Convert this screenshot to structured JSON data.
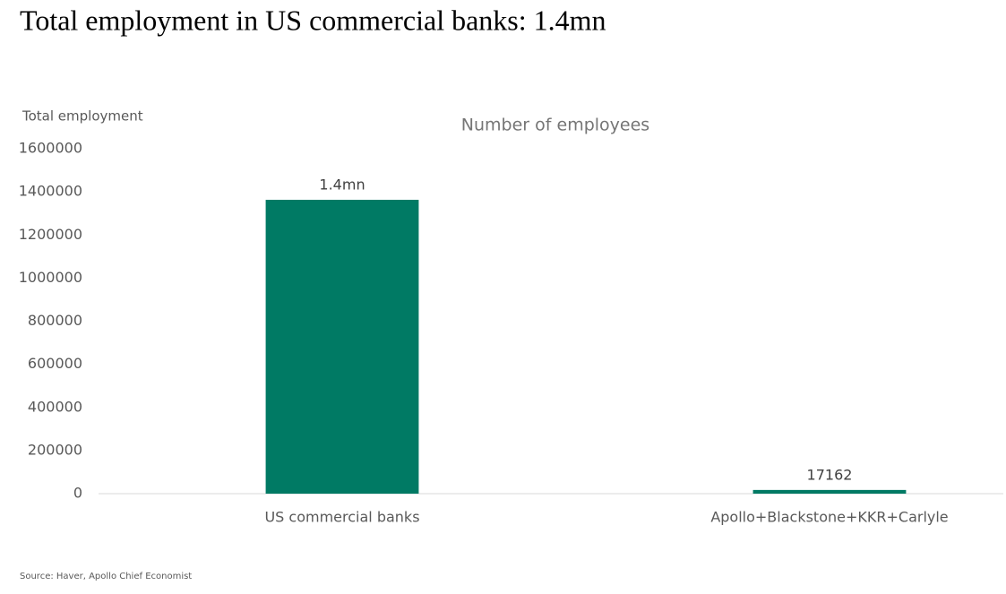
{
  "chart_data": {
    "type": "bar",
    "title": "Total employment in US commercial banks: 1.4mn",
    "subtitle": "Number of employees",
    "y_label": "Total employment",
    "source": "Source: Haver, Apollo Chief Economist",
    "categories": [
      "US commercial banks",
      "Apollo+Blackstone+KKR+Carlyle"
    ],
    "values": [
      1363000,
      17162
    ],
    "value_labels": [
      "1.4mn",
      "17162"
    ],
    "color": "#007a64",
    "ylim": [
      0,
      1600000
    ],
    "yticks": [
      0,
      200000,
      400000,
      600000,
      800000,
      1000000,
      1200000,
      1400000,
      1600000
    ],
    "grid": false
  }
}
